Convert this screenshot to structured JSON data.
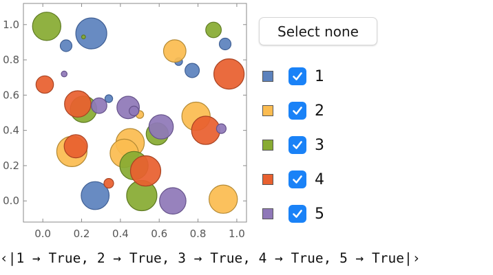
{
  "chart_data": {
    "type": "scatter",
    "subtype": "bubble",
    "xlim": [
      -0.1,
      1.05
    ],
    "ylim": [
      -0.12,
      1.12
    ],
    "x_ticks": [
      0.0,
      0.2,
      0.4,
      0.6,
      0.8,
      1.0
    ],
    "y_ticks": [
      0.0,
      0.2,
      0.4,
      0.6,
      0.8,
      1.0
    ],
    "x_tick_labels": [
      "0.0",
      "0.2",
      "0.4",
      "0.6",
      "0.8",
      "1.0"
    ],
    "y_tick_labels": [
      "0.0",
      "0.2",
      "0.4",
      "0.6",
      "0.8",
      "1.0"
    ],
    "grid": false,
    "legend_position": "right",
    "series": [
      {
        "name": "1",
        "color": "#5c82bd",
        "stroke": "#3f5f94",
        "points": [
          {
            "x": 0.25,
            "y": 0.95,
            "size": 0.08
          },
          {
            "x": 0.12,
            "y": 0.88,
            "size": 0.03
          },
          {
            "x": 0.27,
            "y": 0.03,
            "size": 0.072
          },
          {
            "x": 0.94,
            "y": 0.89,
            "size": 0.03
          },
          {
            "x": 0.77,
            "y": 0.74,
            "size": 0.037
          },
          {
            "x": 0.7,
            "y": 0.79,
            "size": 0.02
          },
          {
            "x": 0.34,
            "y": 0.58,
            "size": 0.02
          }
        ]
      },
      {
        "name": "2",
        "color": "#fbbc51",
        "stroke": "#b48a35",
        "points": [
          {
            "x": 0.68,
            "y": 0.85,
            "size": 0.058
          },
          {
            "x": 0.79,
            "y": 0.48,
            "size": 0.073
          },
          {
            "x": 0.93,
            "y": 0.01,
            "size": 0.073
          },
          {
            "x": 0.15,
            "y": 0.28,
            "size": 0.078
          },
          {
            "x": 0.45,
            "y": 0.33,
            "size": 0.073
          },
          {
            "x": 0.42,
            "y": 0.27,
            "size": 0.073
          },
          {
            "x": 0.5,
            "y": 0.49,
            "size": 0.02
          }
        ]
      },
      {
        "name": "3",
        "color": "#88ab33",
        "stroke": "#5e7a22",
        "points": [
          {
            "x": 0.02,
            "y": 0.99,
            "size": 0.073
          },
          {
            "x": 0.88,
            "y": 0.97,
            "size": 0.04
          },
          {
            "x": 0.21,
            "y": 0.93,
            "size": 0.01
          },
          {
            "x": 0.21,
            "y": 0.52,
            "size": 0.068
          },
          {
            "x": 0.59,
            "y": 0.38,
            "size": 0.057
          },
          {
            "x": 0.47,
            "y": 0.2,
            "size": 0.073
          },
          {
            "x": 0.51,
            "y": 0.03,
            "size": 0.078
          }
        ]
      },
      {
        "name": "4",
        "color": "#e8602f",
        "stroke": "#a84322",
        "points": [
          {
            "x": 0.01,
            "y": 0.66,
            "size": 0.045
          },
          {
            "x": 0.96,
            "y": 0.72,
            "size": 0.078
          },
          {
            "x": 0.18,
            "y": 0.55,
            "size": 0.068
          },
          {
            "x": 0.84,
            "y": 0.4,
            "size": 0.073
          },
          {
            "x": 0.17,
            "y": 0.31,
            "size": 0.06
          },
          {
            "x": 0.53,
            "y": 0.17,
            "size": 0.078
          },
          {
            "x": 0.34,
            "y": 0.1,
            "size": 0.025
          }
        ]
      },
      {
        "name": "5",
        "color": "#8f78b8",
        "stroke": "#65528a",
        "points": [
          {
            "x": 0.11,
            "y": 0.72,
            "size": 0.015
          },
          {
            "x": 0.29,
            "y": 0.54,
            "size": 0.04
          },
          {
            "x": 0.44,
            "y": 0.53,
            "size": 0.058
          },
          {
            "x": 0.47,
            "y": 0.51,
            "size": 0.025
          },
          {
            "x": 0.61,
            "y": 0.42,
            "size": 0.063
          },
          {
            "x": 0.92,
            "y": 0.41,
            "size": 0.025
          },
          {
            "x": 0.67,
            "y": 0.0,
            "size": 0.068
          }
        ]
      }
    ]
  },
  "controls": {
    "select_none_label": "Select none",
    "legend": [
      {
        "label": "1",
        "checked": true
      },
      {
        "label": "2",
        "checked": true
      },
      {
        "label": "3",
        "checked": true
      },
      {
        "label": "4",
        "checked": true
      },
      {
        "label": "5",
        "checked": true
      }
    ]
  },
  "output": {
    "association_text": "‹|1 → True, 2 → True, 3 → True, 4 → True, 5 → True|›"
  }
}
